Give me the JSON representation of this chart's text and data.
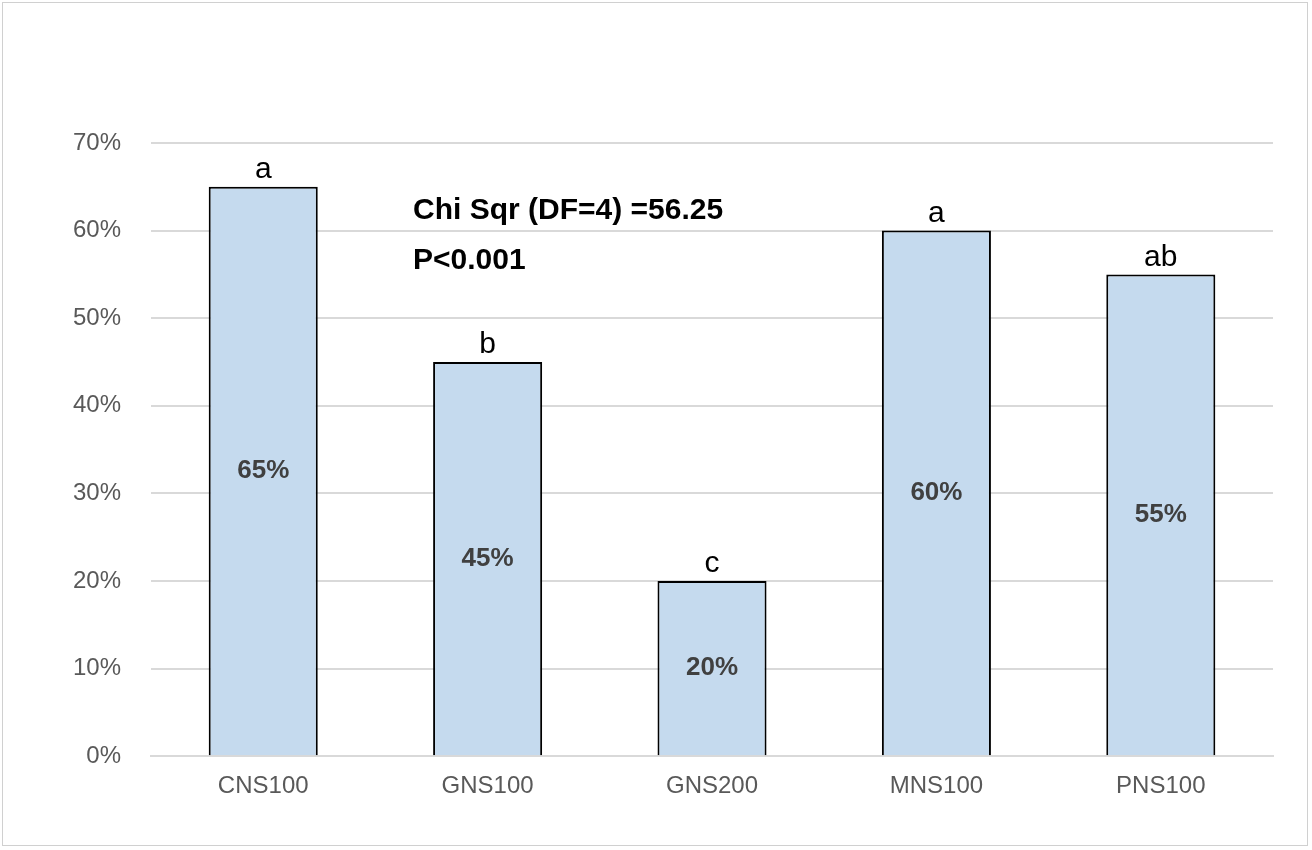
{
  "chart_data": {
    "type": "bar",
    "categories": [
      "CNS100",
      "GNS100",
      "GNS200",
      "MNS100",
      "PNS100"
    ],
    "values": [
      65,
      45,
      20,
      60,
      55
    ],
    "value_labels": [
      "65%",
      "45%",
      "20%",
      "60%",
      "55%"
    ],
    "color": "#c5daee",
    "ylim": [
      0,
      70
    ],
    "yticks": [
      {
        "value": 0,
        "label": "0%"
      },
      {
        "value": 10,
        "label": "10%"
      },
      {
        "value": 20,
        "label": "20%"
      },
      {
        "value": 30,
        "label": "30%"
      },
      {
        "value": 40,
        "label": "40%"
      },
      {
        "value": 50,
        "label": "50%"
      },
      {
        "value": 60,
        "label": "60%"
      },
      {
        "value": 70,
        "label": "70%"
      }
    ],
    "grid": "y",
    "legend": false,
    "annotations": [
      {
        "text": "a",
        "x": "CNS100",
        "y": 65
      },
      {
        "text": "b",
        "x": "GNS100",
        "y": 45
      },
      {
        "text": "c",
        "x": "GNS200",
        "y": 20
      },
      {
        "text": "a",
        "x": "MNS100",
        "y": 60
      },
      {
        "text": "ab",
        "x": "PNS100",
        "y": 55
      },
      "Chi Sqr (DF=4) =56.25",
      "P<0.001"
    ]
  }
}
